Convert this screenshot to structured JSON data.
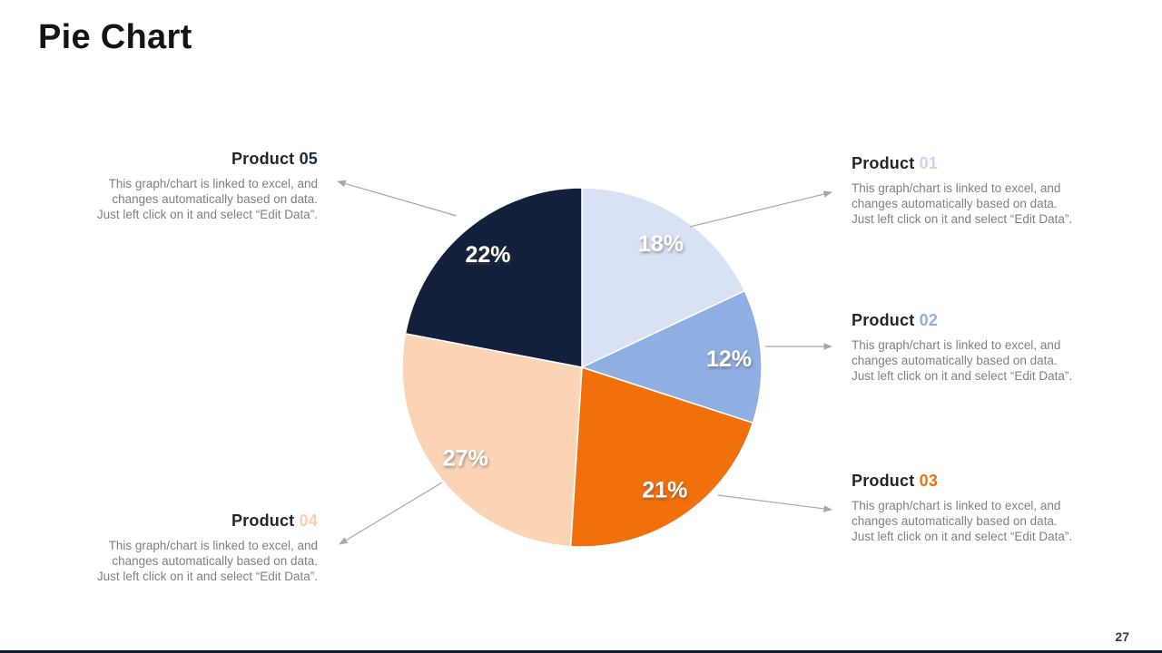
{
  "slide": {
    "title": "Pie Chart",
    "page_number": "27"
  },
  "description": {
    "lines": [
      "This graph/chart is linked to excel, and",
      "changes automatically based on data.",
      "Just left click on it and select “Edit Data”."
    ]
  },
  "callouts": [
    {
      "label": "Product",
      "number": "01",
      "number_color": "#c9d6ef"
    },
    {
      "label": "Product",
      "number": "02",
      "number_color": "#8fafe2"
    },
    {
      "label": "Product",
      "number": "03",
      "number_color": "#ee720f"
    },
    {
      "label": "Product",
      "number": "04",
      "number_color": "#f9cfae"
    },
    {
      "label": "Product",
      "number": "05",
      "number_color": "#1b2a4a"
    }
  ],
  "chart_data": {
    "type": "pie",
    "labels": [
      "Product 01",
      "Product 02",
      "Product 03",
      "Product 04",
      "Product 05"
    ],
    "values": [
      18,
      12,
      21,
      27,
      22
    ],
    "data_labels": [
      "18%",
      "12%",
      "21%",
      "27%",
      "22%"
    ],
    "colors": [
      "#d9e2f5",
      "#8fafe2",
      "#f2700b",
      "#fbd4b5",
      "#13203b"
    ],
    "start_angle_deg": 0,
    "direction": "clockwise",
    "stroke": "#ffffff",
    "legend": "none",
    "leader_line_color": "#a8a8a8"
  }
}
